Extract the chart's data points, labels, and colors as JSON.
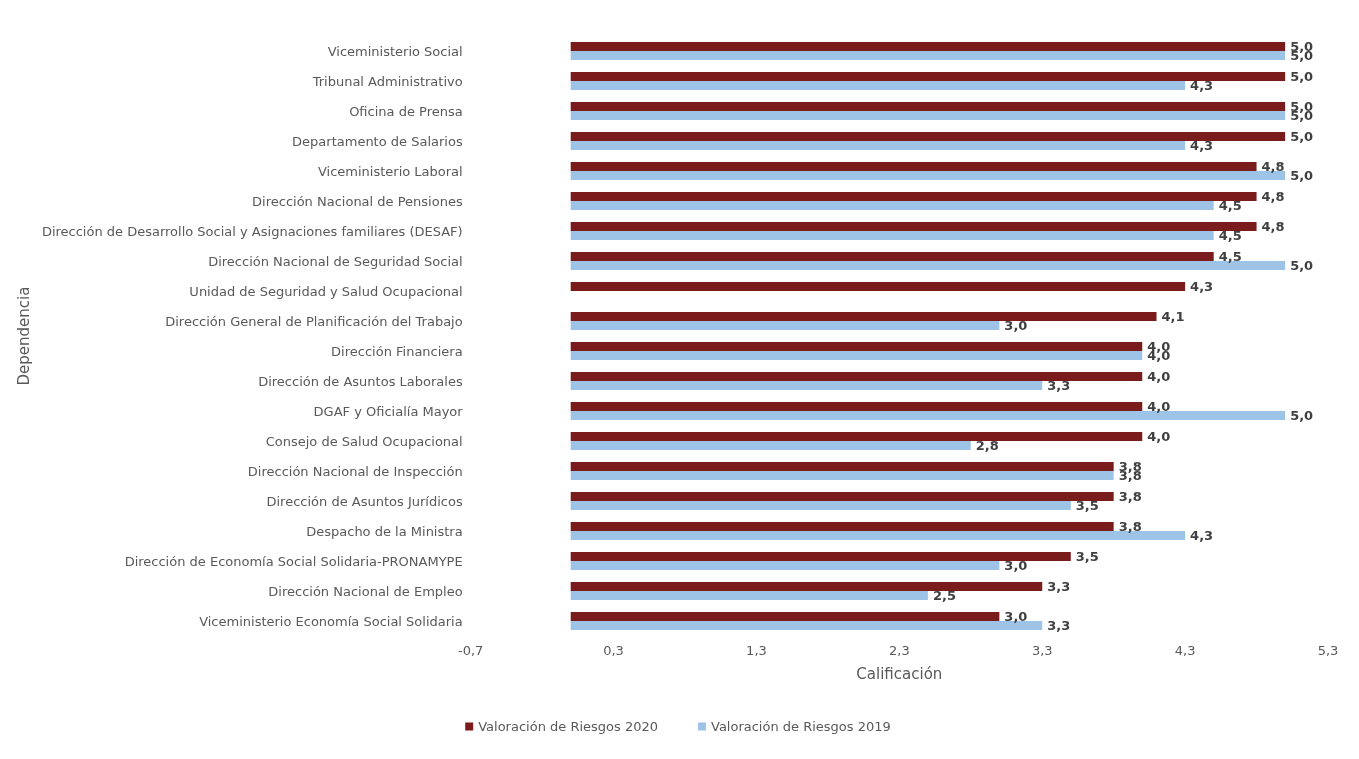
{
  "chart_data": {
    "type": "bar",
    "orientation": "horizontal",
    "xlabel": "Calificación",
    "ylabel": "Dependencia",
    "categories": [
      "Viceministerio Social",
      "Tribunal Administrativo",
      "Oficina de Prensa",
      "Departamento de Salarios",
      "Viceministerio Laboral",
      "Dirección Nacional de Pensiones",
      "Dirección de Desarrollo Social y Asignaciones familiares (DESAF)",
      "Dirección Nacional de Seguridad Social",
      "Unidad de Seguridad y Salud Ocupacional",
      "Dirección General de Planificación del Trabajo",
      "Dirección Financiera",
      "Dirección de Asuntos Laborales",
      "DGAF y Oficialía Mayor",
      "Consejo de Salud Ocupacional",
      "Dirección Nacional de Inspección",
      "Dirección de Asuntos Jurídicos",
      "Despacho de la Ministra",
      "Dirección de Economía Social Solidaria-PRONAMYPE",
      "Dirección Nacional de Empleo",
      "Viceministerio Economía Social Solidaria"
    ],
    "series": [
      {
        "name": "Valoración de Riesgos 2020",
        "color": "#7b1c1c",
        "values": [
          5.0,
          5.0,
          5.0,
          5.0,
          4.8,
          4.8,
          4.8,
          4.5,
          4.3,
          4.1,
          4.0,
          4.0,
          4.0,
          4.0,
          3.8,
          3.8,
          3.8,
          3.5,
          3.3,
          3.0
        ],
        "value_labels": [
          "5,0",
          "5,0",
          "5,0",
          "5,0",
          "4,8",
          "4,8",
          "4,8",
          "4,5",
          "4,3",
          "4,1",
          "4,0",
          "4,0",
          "4,0",
          "4,0",
          "3,8",
          "3,8",
          "3,8",
          "3,5",
          "3,3",
          "3,0"
        ]
      },
      {
        "name": "Valoración de Riesgos 2019",
        "color": "#9dc3e6",
        "values": [
          5.0,
          4.3,
          5.0,
          4.3,
          5.0,
          4.5,
          4.5,
          5.0,
          null,
          3.0,
          4.0,
          3.3,
          5.0,
          2.8,
          3.8,
          3.5,
          4.3,
          3.0,
          2.5,
          3.3
        ],
        "value_labels": [
          "5,0",
          "4,3",
          "5,0",
          "4,3",
          "5,0",
          "4,5",
          "4,5",
          "5,0",
          null,
          "3,0",
          "4,0",
          "3,3",
          "5,0",
          "2,8",
          "3,8",
          "3,5",
          "4,3",
          "3,0",
          "2,5",
          "3,3"
        ]
      }
    ],
    "xlim": [
      -0.7,
      5.3
    ],
    "xticks": [
      {
        "value": -0.7,
        "label": "-0,7"
      },
      {
        "value": 0.3,
        "label": "0,3"
      },
      {
        "value": 1.3,
        "label": "1,3"
      },
      {
        "value": 2.3,
        "label": "2,3"
      },
      {
        "value": 3.3,
        "label": "3,3"
      },
      {
        "value": 4.3,
        "label": "4,3"
      },
      {
        "value": 5.3,
        "label": "5,3"
      }
    ],
    "grid": false,
    "legend": "bottom"
  }
}
